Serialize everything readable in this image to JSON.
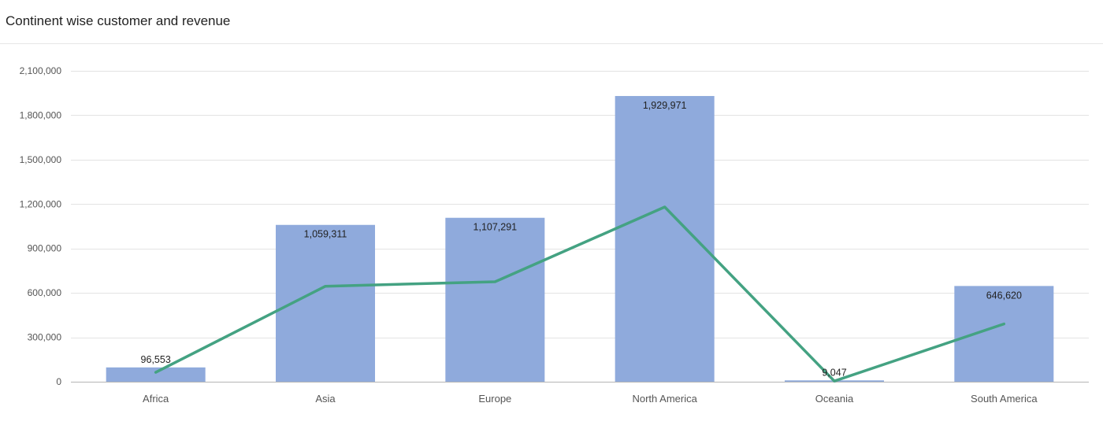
{
  "panel": {
    "title": "Continent wise customer and revenue"
  },
  "colors": {
    "bar": "#8faadc",
    "line": "#44a282",
    "grid": "#e3e3e3",
    "axis": "#b5b5b5"
  },
  "chart_data": {
    "type": "bar",
    "title": "Continent wise customer and revenue",
    "xlabel": "",
    "ylabel": "",
    "ylim": [
      0,
      2100000
    ],
    "yticks": [
      0,
      300000,
      600000,
      900000,
      1200000,
      1500000,
      1800000,
      2100000
    ],
    "ytick_labels": [
      "0",
      "300,000",
      "600,000",
      "900,000",
      "1,200,000",
      "1,500,000",
      "1,800,000",
      "2,100,000"
    ],
    "grid": true,
    "legend": "none",
    "categories": [
      "Africa",
      "Asia",
      "Europe",
      "North America",
      "Oceania",
      "South America"
    ],
    "series": [
      {
        "type": "bar",
        "values": [
          96553,
          1059311,
          1107291,
          1929971,
          9047,
          646620
        ],
        "data_labels": [
          "96,553",
          "1,059,311",
          "1,107,291",
          "1,929,971",
          "9,047",
          "646,620"
        ]
      },
      {
        "type": "line",
        "values": [
          63000,
          645000,
          675000,
          1180000,
          4000,
          390000
        ]
      }
    ]
  }
}
